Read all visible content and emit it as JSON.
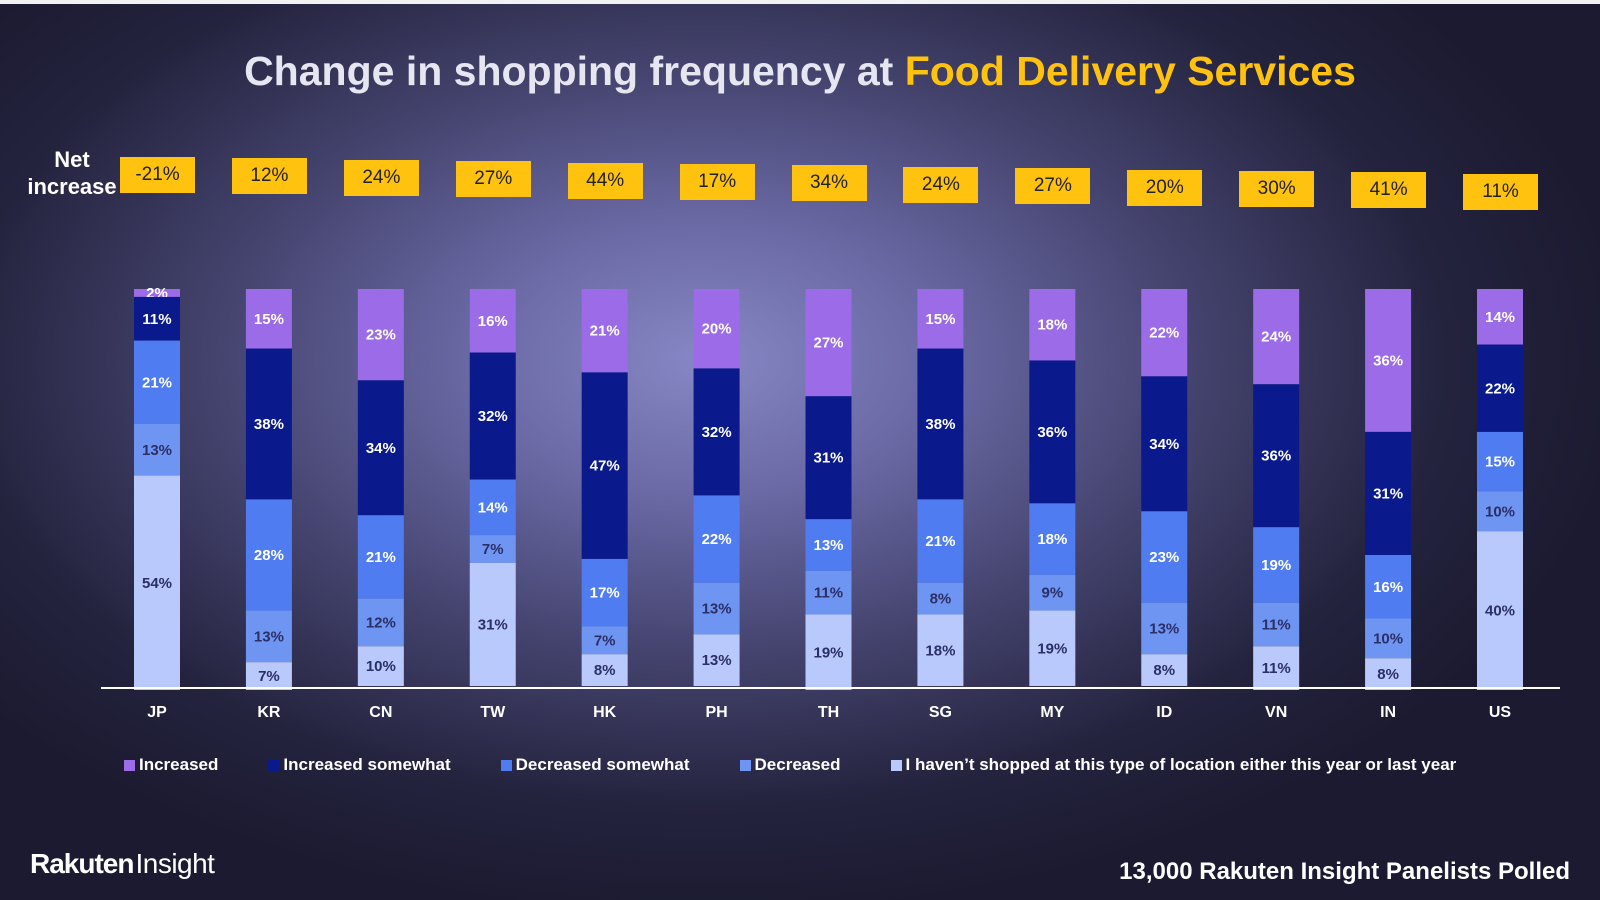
{
  "title": {
    "prefix": "Change in shopping frequency at ",
    "highlight": "Food Delivery Services"
  },
  "net_increase": {
    "label_line1": "Net",
    "label_line2": "increase"
  },
  "colors": {
    "increased": "#9b6be8",
    "increased_somewhat": "#0a1a8c",
    "decreased_somewhat": "#4f7cf0",
    "decreased": "#6f95f2",
    "not_shopped": "#b9c9fb",
    "highlight": "#ffc20e",
    "background": "#3a3960"
  },
  "chart_data": {
    "type": "bar",
    "stacked": true,
    "normalized_percent": true,
    "title": "Change in shopping frequency at Food Delivery Services",
    "categories": [
      "JP",
      "KR",
      "CN",
      "TW",
      "HK",
      "PH",
      "TH",
      "SG",
      "MY",
      "ID",
      "VN",
      "IN",
      "US"
    ],
    "net_increase": [
      "-21%",
      "12%",
      "24%",
      "27%",
      "44%",
      "17%",
      "34%",
      "24%",
      "27%",
      "20%",
      "30%",
      "41%",
      "11%"
    ],
    "series": [
      {
        "name": "Increased",
        "color": "#9b6be8",
        "label_color": "#ffffff",
        "values": [
          2,
          15,
          23,
          16,
          21,
          20,
          27,
          15,
          18,
          22,
          24,
          36,
          14
        ]
      },
      {
        "name": "Increased somewhat",
        "color": "#0a1a8c",
        "label_color": "#ffffff",
        "values": [
          11,
          38,
          34,
          32,
          47,
          32,
          31,
          38,
          36,
          34,
          36,
          31,
          22
        ]
      },
      {
        "name": "Decreased somewhat",
        "color": "#4f7cf0",
        "label_color": "#ffffff",
        "values": [
          21,
          28,
          21,
          14,
          17,
          22,
          13,
          21,
          18,
          23,
          19,
          16,
          15
        ]
      },
      {
        "name": "Decreased",
        "color": "#6f95f2",
        "label_color": "#2b2f66",
        "values": [
          13,
          13,
          12,
          7,
          7,
          13,
          11,
          8,
          9,
          13,
          11,
          10,
          10
        ]
      },
      {
        "name": "I haven’t shopped at this type of location either this year or last year",
        "color": "#b9c9fb",
        "label_color": "#2b2f66",
        "values": [
          54,
          7,
          10,
          31,
          8,
          13,
          19,
          18,
          19,
          8,
          11,
          8,
          40
        ]
      }
    ],
    "ylim": [
      0,
      100
    ],
    "legend_position": "bottom",
    "grid": false
  },
  "footer": {
    "brand_bold": "Rakuten",
    "brand_light": "Insight",
    "panel_note": "13,000  Rakuten Insight Panelists Polled"
  }
}
